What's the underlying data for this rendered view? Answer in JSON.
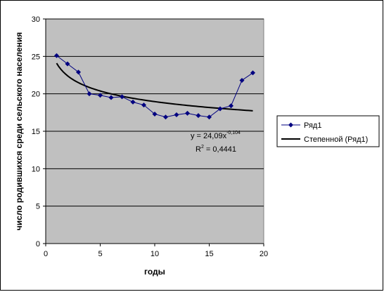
{
  "chart_data": {
    "type": "scatter",
    "xlabel": "годы",
    "ylabel": "число родившихся среди сельского населения",
    "xlim": [
      0,
      20
    ],
    "ylim": [
      0,
      30
    ],
    "xticks": [
      0,
      5,
      10,
      15,
      20
    ],
    "yticks": [
      0,
      5,
      10,
      15,
      20,
      25,
      30
    ],
    "grid": "horizontal",
    "legend_position": "right",
    "plot_area_color": "#c0c0c0",
    "series": [
      {
        "name": "Ряд1",
        "color": "#000080",
        "marker": "diamond",
        "x": [
          1,
          2,
          3,
          4,
          5,
          6,
          7,
          8,
          9,
          10,
          11,
          12,
          13,
          14,
          15,
          16,
          17,
          18,
          19
        ],
        "y": [
          25.1,
          24.0,
          22.9,
          20.0,
          19.8,
          19.5,
          19.6,
          18.9,
          18.5,
          17.3,
          16.9,
          17.2,
          17.4,
          17.1,
          16.9,
          18.0,
          18.4,
          21.8,
          22.8
        ]
      }
    ],
    "trendline": {
      "name": "Степенной (Ряд1)",
      "type": "power",
      "a": 24.09,
      "b": -0.104,
      "x_range": [
        1,
        19
      ],
      "color": "#000000",
      "equation_text": {
        "prefix": "y = 24,09x",
        "exponent": "-0,104",
        "r2_label": "R",
        "r2_sup": "2",
        "r2_value": " = 0,4441"
      }
    }
  }
}
